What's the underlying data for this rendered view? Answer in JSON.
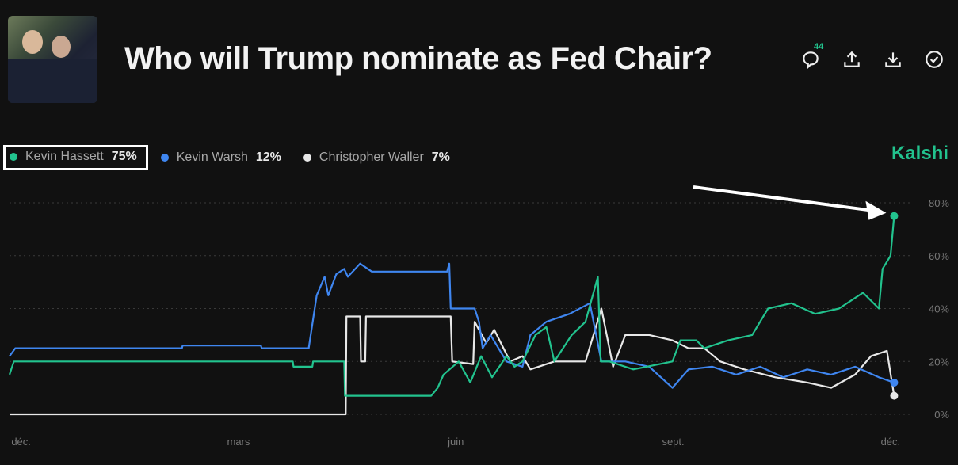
{
  "header": {
    "title": "Who will Trump nominate as Fed Chair?",
    "comments_count": "44"
  },
  "icons": [
    "comment-icon",
    "share-icon",
    "download-icon",
    "check-circle-icon"
  ],
  "brand": "Kalshi",
  "legend": [
    {
      "name": "Kevin Hassett",
      "pct": "75%",
      "color": "#22c38e"
    },
    {
      "name": "Kevin Warsh",
      "pct": "12%",
      "color": "#3f86f0"
    },
    {
      "name": "Christopher Waller",
      "pct": "7%",
      "color": "#e8e8e8"
    }
  ],
  "chart_data": {
    "type": "line",
    "title": "Who will Trump nominate as Fed Chair?",
    "x_unit": "months since Dec",
    "xlim": [
      -0.16,
      12.1
    ],
    "ylim": [
      0,
      80
    ],
    "x_ticks": [
      {
        "v": 0,
        "label": "déc."
      },
      {
        "v": 3,
        "label": "mars"
      },
      {
        "v": 6,
        "label": "juin"
      },
      {
        "v": 9,
        "label": "sept."
      },
      {
        "v": 12,
        "label": "déc."
      }
    ],
    "y_ticks": [
      {
        "v": 0,
        "label": "0%"
      },
      {
        "v": 20,
        "label": "20%"
      },
      {
        "v": 40,
        "label": "40%"
      },
      {
        "v": 60,
        "label": "60%"
      },
      {
        "v": 80,
        "label": "80%"
      }
    ],
    "grid": true,
    "legend_position": "top-left",
    "annotation": "arrow pointing to Kevin Hassett latest value",
    "series": [
      {
        "name": "Kevin Hassett",
        "color": "#22c38e",
        "points": [
          [
            -0.16,
            15
          ],
          [
            -0.1,
            20
          ],
          [
            3.75,
            20
          ],
          [
            3.76,
            18
          ],
          [
            4.02,
            18
          ],
          [
            4.03,
            20
          ],
          [
            4.46,
            20
          ],
          [
            4.47,
            7
          ],
          [
            5.66,
            7
          ],
          [
            5.75,
            10
          ],
          [
            5.83,
            15
          ],
          [
            6.04,
            20
          ],
          [
            6.2,
            12
          ],
          [
            6.35,
            22
          ],
          [
            6.5,
            14
          ],
          [
            6.7,
            22
          ],
          [
            6.81,
            18
          ],
          [
            6.92,
            20
          ],
          [
            7.1,
            30
          ],
          [
            7.25,
            33
          ],
          [
            7.36,
            20
          ],
          [
            7.6,
            30
          ],
          [
            7.79,
            35
          ],
          [
            7.96,
            52
          ],
          [
            8.0,
            20
          ],
          [
            8.12,
            20
          ],
          [
            8.45,
            17
          ],
          [
            8.99,
            20
          ],
          [
            9.1,
            28
          ],
          [
            9.32,
            28
          ],
          [
            9.43,
            25
          ],
          [
            9.76,
            28
          ],
          [
            10.09,
            30
          ],
          [
            10.31,
            40
          ],
          [
            10.63,
            42
          ],
          [
            10.96,
            38
          ],
          [
            11.29,
            40
          ],
          [
            11.62,
            46
          ],
          [
            11.84,
            40
          ],
          [
            11.89,
            55
          ],
          [
            12.0,
            60
          ],
          [
            12.05,
            75
          ]
        ]
      },
      {
        "name": "Kevin Warsh",
        "color": "#3f86f0",
        "points": [
          [
            -0.16,
            22
          ],
          [
            -0.08,
            25
          ],
          [
            2.22,
            25
          ],
          [
            2.23,
            26
          ],
          [
            3.31,
            26
          ],
          [
            3.32,
            25
          ],
          [
            3.97,
            25
          ],
          [
            4.08,
            45
          ],
          [
            4.19,
            52
          ],
          [
            4.24,
            45
          ],
          [
            4.35,
            53
          ],
          [
            4.46,
            55
          ],
          [
            4.51,
            52
          ],
          [
            4.68,
            57
          ],
          [
            4.84,
            54
          ],
          [
            5.88,
            54
          ],
          [
            5.91,
            57
          ],
          [
            5.93,
            40
          ],
          [
            6.26,
            40
          ],
          [
            6.32,
            35
          ],
          [
            6.37,
            25
          ],
          [
            6.48,
            30
          ],
          [
            6.7,
            20
          ],
          [
            6.92,
            18
          ],
          [
            7.03,
            30
          ],
          [
            7.25,
            35
          ],
          [
            7.57,
            38
          ],
          [
            7.85,
            42
          ],
          [
            8.01,
            20
          ],
          [
            8.34,
            20
          ],
          [
            8.67,
            18
          ],
          [
            8.99,
            10
          ],
          [
            9.21,
            17
          ],
          [
            9.54,
            18
          ],
          [
            9.87,
            15
          ],
          [
            10.2,
            18
          ],
          [
            10.52,
            14
          ],
          [
            10.85,
            17
          ],
          [
            11.18,
            15
          ],
          [
            11.51,
            18
          ],
          [
            11.84,
            14
          ],
          [
            12.05,
            12
          ]
        ]
      },
      {
        "name": "Christopher Waller",
        "color": "#e8e8e8",
        "points": [
          [
            -0.16,
            0
          ],
          [
            4.48,
            0
          ],
          [
            4.49,
            37
          ],
          [
            4.68,
            37
          ],
          [
            4.69,
            20
          ],
          [
            4.75,
            20
          ],
          [
            4.76,
            37
          ],
          [
            5.93,
            37
          ],
          [
            5.95,
            20
          ],
          [
            6.24,
            19
          ],
          [
            6.26,
            35
          ],
          [
            6.42,
            27
          ],
          [
            6.53,
            32
          ],
          [
            6.75,
            20
          ],
          [
            6.92,
            22
          ],
          [
            7.03,
            17
          ],
          [
            7.36,
            20
          ],
          [
            7.79,
            20
          ],
          [
            8.01,
            40
          ],
          [
            8.17,
            18
          ],
          [
            8.34,
            30
          ],
          [
            8.67,
            30
          ],
          [
            8.99,
            28
          ],
          [
            9.21,
            25
          ],
          [
            9.43,
            25
          ],
          [
            9.65,
            20
          ],
          [
            9.98,
            17
          ],
          [
            10.41,
            14
          ],
          [
            10.85,
            12
          ],
          [
            11.18,
            10
          ],
          [
            11.51,
            15
          ],
          [
            11.73,
            22
          ],
          [
            11.95,
            24
          ],
          [
            12.05,
            7
          ]
        ]
      }
    ]
  }
}
